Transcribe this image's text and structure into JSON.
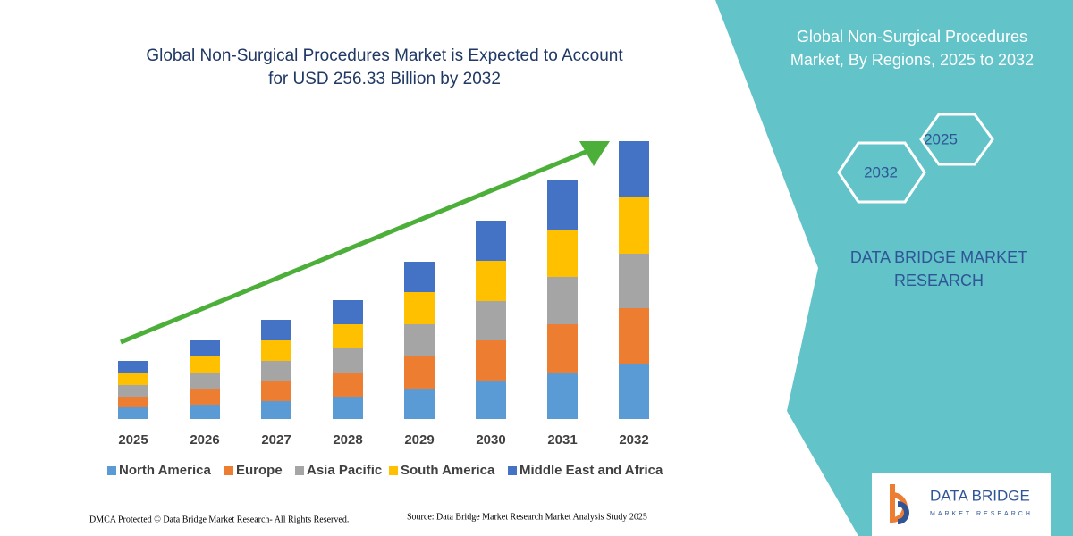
{
  "chart_data": {
    "type": "bar",
    "stacked": true,
    "title_lines": [
      "Global Non-Surgical Procedures Market is Expected to Account",
      "for USD 256.33 Billion by 2032"
    ],
    "categories": [
      "2025",
      "2026",
      "2027",
      "2028",
      "2029",
      "2030",
      "2031",
      "2032"
    ],
    "series": [
      {
        "name": "North America",
        "color": "#5b9bd5",
        "values": [
          13,
          16,
          20,
          25,
          34,
          43,
          52,
          61
        ]
      },
      {
        "name": "Europe",
        "color": "#ed7d31",
        "values": [
          12,
          17,
          23,
          27,
          36,
          45,
          54,
          63
        ]
      },
      {
        "name": "Asia Pacific",
        "color": "#a5a5a5",
        "values": [
          13,
          18,
          22,
          27,
          36,
          44,
          53,
          61
        ]
      },
      {
        "name": "South America",
        "color": "#ffc000",
        "values": [
          13,
          19,
          23,
          27,
          36,
          45,
          53,
          64
        ]
      },
      {
        "name": "Middle East and Africa",
        "color": "#4472c4",
        "values": [
          14,
          18,
          23,
          27,
          34,
          45,
          55,
          62
        ]
      }
    ]
  },
  "panel": {
    "title_lines": [
      "Global Non-Surgical Procedures",
      "Market, By Regions, 2025 to 2032"
    ],
    "hex_labels": [
      "2025",
      "2032"
    ],
    "brand_lines": [
      "DATA BRIDGE MARKET",
      "RESEARCH"
    ],
    "logo": {
      "name": "DATA BRIDGE",
      "tagline": "MARKET RESEARCH"
    }
  },
  "footer": {
    "left": "DMCA Protected © Data Bridge Market Research-  All Rights Reserved.",
    "right": "Source: Data Bridge Market Research  Market Analysis Study 2025"
  }
}
